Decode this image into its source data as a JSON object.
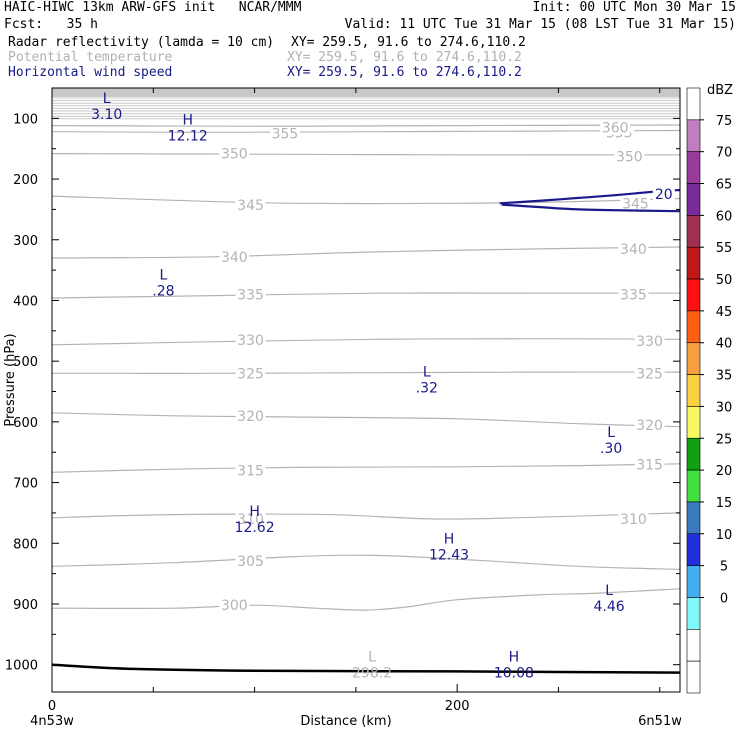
{
  "header": {
    "title_left": "HAIC-HIWC 13km ARW-GFS init   NCAR/MMM",
    "init": "Init: 00 UTC Mon 30 Mar 15",
    "fcst": "Fcst:   35 h",
    "valid": "Valid: 11 UTC Tue 31 Mar 15 (08 LST Tue 31 Mar 15)",
    "fields": [
      {
        "label": "Radar reflectivity (lamda = 10 cm)",
        "xy": "XY= 259.5, 91.6 to 274.6,110.2",
        "color": "#000000"
      },
      {
        "label": "Potential temperature",
        "xy": "XY= 259.5, 91.6 to 274.6,110.2",
        "color": "#b0b0b0"
      },
      {
        "label": "Horizontal wind speed",
        "xy": "XY= 259.5, 91.6 to 274.6,110.2",
        "color": "#1a1a8a"
      }
    ]
  },
  "chart_data": {
    "type": "line",
    "xlabel": "Distance (km)",
    "ylabel": "Pressure (hPa)",
    "xlim": [
      0,
      310
    ],
    "ylim": [
      50,
      1045
    ],
    "x_ticks": [
      0,
      200
    ],
    "x_minor_ticks": [
      50,
      100,
      150,
      250,
      300
    ],
    "y_ticks": [
      100,
      200,
      300,
      400,
      500,
      600,
      700,
      800,
      900,
      1000
    ],
    "endpoint_labels": {
      "left": "4n53w",
      "right": "6n51w"
    },
    "theta_contours": [
      {
        "level": 355,
        "points": [
          [
            0,
            122
          ],
          [
            80,
            123
          ],
          [
            160,
            122
          ],
          [
            240,
            121
          ],
          [
            310,
            120
          ]
        ],
        "labels": [
          {
            "x": 115,
            "p": 125
          },
          {
            "x": 280,
            "p": 123
          }
        ]
      },
      {
        "level": 360,
        "points": [
          [
            0,
            112
          ],
          [
            100,
            113
          ],
          [
            200,
            112
          ],
          [
            310,
            111
          ]
        ],
        "labels": [
          {
            "x": 278,
            "p": 115
          }
        ]
      },
      {
        "level": 350,
        "points": [
          [
            0,
            158
          ],
          [
            100,
            159
          ],
          [
            200,
            160
          ],
          [
            310,
            160
          ]
        ],
        "labels": [
          {
            "x": 90,
            "p": 158
          },
          {
            "x": 285,
            "p": 163
          }
        ]
      },
      {
        "level": 345,
        "points": [
          [
            0,
            228
          ],
          [
            60,
            235
          ],
          [
            120,
            240
          ],
          [
            200,
            240
          ],
          [
            260,
            237
          ],
          [
            310,
            232
          ]
        ],
        "labels": [
          {
            "x": 98,
            "p": 243
          },
          {
            "x": 288,
            "p": 240
          }
        ]
      },
      {
        "level": 340,
        "points": [
          [
            0,
            330
          ],
          [
            80,
            328
          ],
          [
            160,
            320
          ],
          [
            240,
            315
          ],
          [
            310,
            312
          ]
        ],
        "labels": [
          {
            "x": 90,
            "p": 328
          },
          {
            "x": 287,
            "p": 315
          }
        ]
      },
      {
        "level": 335,
        "points": [
          [
            0,
            396
          ],
          [
            80,
            392
          ],
          [
            160,
            388
          ],
          [
            240,
            388
          ],
          [
            310,
            388
          ]
        ],
        "labels": [
          {
            "x": 98,
            "p": 390
          },
          {
            "x": 287,
            "p": 390
          }
        ]
      },
      {
        "level": 330,
        "points": [
          [
            0,
            473
          ],
          [
            80,
            468
          ],
          [
            160,
            464
          ],
          [
            240,
            463
          ],
          [
            310,
            464
          ]
        ],
        "labels": [
          {
            "x": 98,
            "p": 465
          },
          {
            "x": 295,
            "p": 467
          }
        ]
      },
      {
        "level": 325,
        "points": [
          [
            0,
            520
          ],
          [
            80,
            520
          ],
          [
            160,
            519
          ],
          [
            240,
            518
          ],
          [
            310,
            518
          ]
        ],
        "labels": [
          {
            "x": 98,
            "p": 520
          },
          {
            "x": 295,
            "p": 520
          }
        ]
      },
      {
        "level": 320,
        "points": [
          [
            0,
            585
          ],
          [
            60,
            590
          ],
          [
            120,
            592
          ],
          [
            200,
            595
          ],
          [
            260,
            603
          ],
          [
            310,
            608
          ]
        ],
        "labels": [
          {
            "x": 98,
            "p": 590
          },
          {
            "x": 295,
            "p": 605
          }
        ]
      },
      {
        "level": 315,
        "points": [
          [
            0,
            683
          ],
          [
            60,
            678
          ],
          [
            120,
            675
          ],
          [
            200,
            674
          ],
          [
            260,
            672
          ],
          [
            310,
            669
          ]
        ],
        "labels": [
          {
            "x": 98,
            "p": 680
          },
          {
            "x": 295,
            "p": 670
          }
        ]
      },
      {
        "level": 310,
        "points": [
          [
            0,
            758
          ],
          [
            40,
            754
          ],
          [
            90,
            752
          ],
          [
            140,
            753
          ],
          [
            190,
            760
          ],
          [
            240,
            757
          ],
          [
            310,
            750
          ]
        ],
        "labels": [
          {
            "x": 98,
            "p": 760
          },
          {
            "x": 287,
            "p": 760
          }
        ]
      },
      {
        "level": 305,
        "points": [
          [
            0,
            838
          ],
          [
            60,
            832
          ],
          [
            120,
            822
          ],
          [
            160,
            820
          ],
          [
            210,
            828
          ],
          [
            260,
            838
          ],
          [
            310,
            843
          ]
        ],
        "labels": [
          {
            "x": 98,
            "p": 829
          }
        ]
      },
      {
        "level": 300,
        "points": [
          [
            0,
            907
          ],
          [
            60,
            907
          ],
          [
            100,
            902
          ],
          [
            130,
            907
          ],
          [
            155,
            910
          ],
          [
            175,
            905
          ],
          [
            200,
            893
          ],
          [
            240,
            885
          ],
          [
            270,
            882
          ],
          [
            310,
            875
          ]
        ],
        "labels": [
          {
            "x": 90,
            "p": 902
          }
        ]
      }
    ],
    "wind_contours": [
      {
        "level": 20,
        "points": [
          [
            221,
            240
          ],
          [
            240,
            236
          ],
          [
            260,
            231
          ],
          [
            280,
            226
          ],
          [
            300,
            220
          ],
          [
            310,
            218
          ]
        ],
        "close_points": [
          [
            310,
            253
          ],
          [
            290,
            252
          ],
          [
            260,
            250
          ],
          [
            240,
            246
          ],
          [
            222,
            242
          ]
        ],
        "labels": [
          {
            "x": 302,
            "p": 225
          }
        ]
      }
    ],
    "terrain": [
      [
        0,
        1000
      ],
      [
        40,
        1007
      ],
      [
        100,
        1010
      ],
      [
        200,
        1011
      ],
      [
        250,
        1012
      ],
      [
        310,
        1013
      ]
    ],
    "high_low_labels": [
      {
        "kind": "L",
        "value": "3.10",
        "field": "wind",
        "x": 27,
        "p": 80
      },
      {
        "kind": "H",
        "value": "12.12",
        "field": "wind",
        "x": 67,
        "p": 115
      },
      {
        "kind": "L",
        "value": ".28",
        "field": "wind",
        "x": 55,
        "p": 370
      },
      {
        "kind": "L",
        "value": ".32",
        "field": "wind",
        "x": 185,
        "p": 530
      },
      {
        "kind": "L",
        "value": ".30",
        "field": "wind",
        "x": 276,
        "p": 630
      },
      {
        "kind": "H",
        "value": "12.62",
        "field": "wind",
        "x": 100,
        "p": 760
      },
      {
        "kind": "H",
        "value": "12.43",
        "field": "wind",
        "x": 196,
        "p": 805
      },
      {
        "kind": "L",
        "value": "4.46",
        "field": "wind",
        "x": 275,
        "p": 890
      },
      {
        "kind": "L",
        "value": "298.2",
        "field": "theta",
        "x": 158,
        "p": 1000
      },
      {
        "kind": "H",
        "value": "10.08",
        "field": "wind",
        "x": 228,
        "p": 1000
      }
    ],
    "colorbar": {
      "unit": "dBZ",
      "levels": [
        75,
        70,
        65,
        60,
        55,
        50,
        45,
        40,
        35,
        30,
        25,
        20,
        15,
        10,
        5,
        0
      ],
      "colors": [
        "#ffffff",
        "#c07ec0",
        "#9a3a9a",
        "#7a2a9a",
        "#a03050",
        "#c01818",
        "#ff1010",
        "#ff6010",
        "#f8a040",
        "#f8d040",
        "#f8f860",
        "#10a010",
        "#40e040",
        "#3a7ac0",
        "#2030e0",
        "#40b0f0",
        "#80f8f8",
        "#ffffff",
        "#ffffff"
      ]
    }
  },
  "styles": {
    "theta_color": "#b4b4b4",
    "wind_color": "#1a1a8a",
    "terrain_color": "#000000"
  }
}
